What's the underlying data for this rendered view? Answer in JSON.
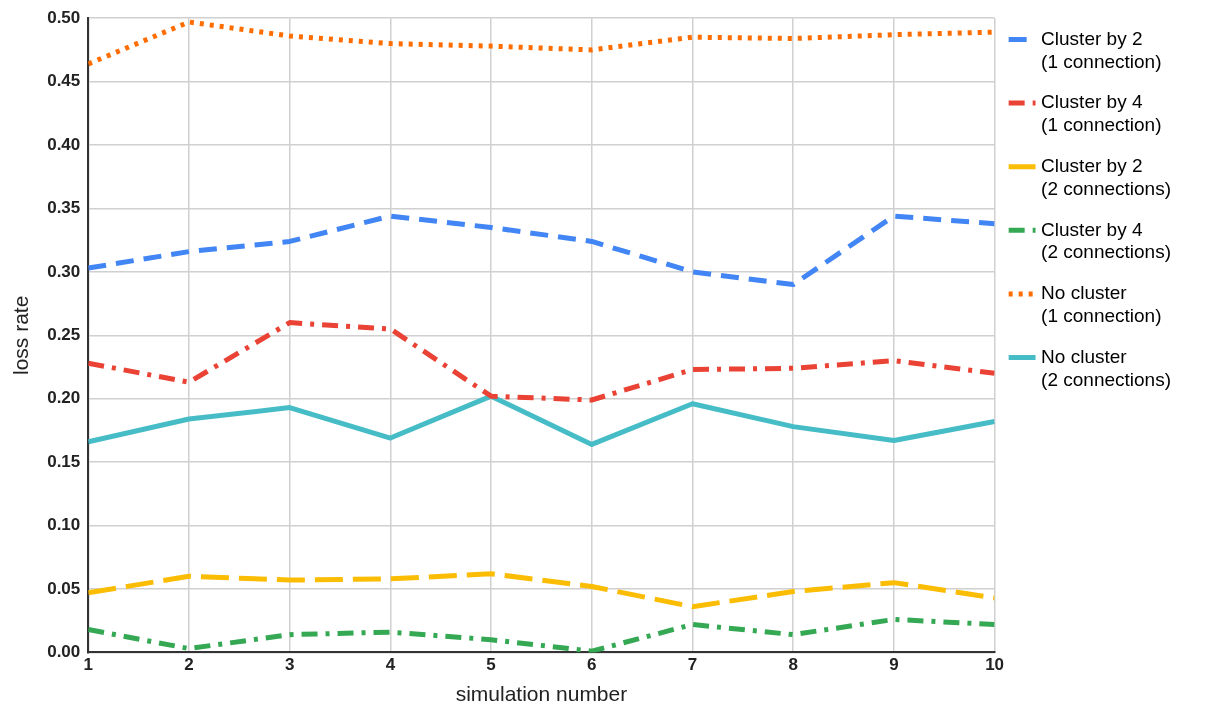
{
  "chart_data": {
    "type": "line",
    "xlabel": "simulation number",
    "ylabel": "loss rate",
    "x": [
      1,
      2,
      3,
      4,
      5,
      6,
      7,
      8,
      9,
      10
    ],
    "xlim": [
      1,
      10
    ],
    "xticks": [
      1,
      2,
      3,
      4,
      5,
      6,
      7,
      8,
      9,
      10
    ],
    "ylim": [
      0,
      0.5
    ],
    "yticks": [
      {
        "value": 0,
        "label": "0.00"
      },
      {
        "value": 0.05,
        "label": "0.05"
      },
      {
        "value": 0.1,
        "label": "0.10"
      },
      {
        "value": 0.15,
        "label": "0.15"
      },
      {
        "value": 0.2,
        "label": "0.20"
      },
      {
        "value": 0.25,
        "label": "0.25"
      },
      {
        "value": 0.3,
        "label": "0.30"
      },
      {
        "value": 0.35,
        "label": "0.35"
      },
      {
        "value": 0.4,
        "label": "0.40"
      },
      {
        "value": 0.45,
        "label": "0.45"
      },
      {
        "value": 0.5,
        "label": "0.50"
      }
    ],
    "grid": true,
    "legend": "top right",
    "marker": "none",
    "series": [
      {
        "name": "Cluster by 2\n(1 connection)",
        "color": "#4285f4",
        "line_style": "dashed",
        "values": [
          0.303,
          0.316,
          0.324,
          0.344,
          0.335,
          0.324,
          0.3,
          0.29,
          0.344,
          0.338
        ]
      },
      {
        "name": "Cluster by 4\n(1 connection)",
        "color": "#ea4335",
        "line_style": "dashdot",
        "values": [
          0.228,
          0.213,
          0.26,
          0.255,
          0.202,
          0.199,
          0.223,
          0.224,
          0.23,
          0.22
        ]
      },
      {
        "name": "Cluster by 2\n(2 connections)",
        "color": "#fbbc04",
        "line_style": "longdash",
        "values": [
          0.047,
          0.06,
          0.057,
          0.058,
          0.062,
          0.052,
          0.036,
          0.048,
          0.055,
          0.043
        ]
      },
      {
        "name": "Cluster by 4\n(2 connections)",
        "color": "#34a853",
        "line_style": "dashdot",
        "values": [
          0.018,
          0.003,
          0.014,
          0.016,
          0.01,
          0.001,
          0.022,
          0.014,
          0.026,
          0.022
        ]
      },
      {
        "name": "No cluster\n(1 connection)",
        "color": "#ff6d01",
        "line_style": "dotted",
        "values": [
          0.464,
          0.497,
          0.486,
          0.48,
          0.478,
          0.475,
          0.485,
          0.484,
          0.487,
          0.489
        ]
      },
      {
        "name": "No cluster\n(2 connections)",
        "color": "#46bdc6",
        "line_style": "solid",
        "values": [
          0.166,
          0.184,
          0.193,
          0.169,
          0.202,
          0.164,
          0.196,
          0.178,
          0.167,
          0.182
        ]
      }
    ]
  }
}
